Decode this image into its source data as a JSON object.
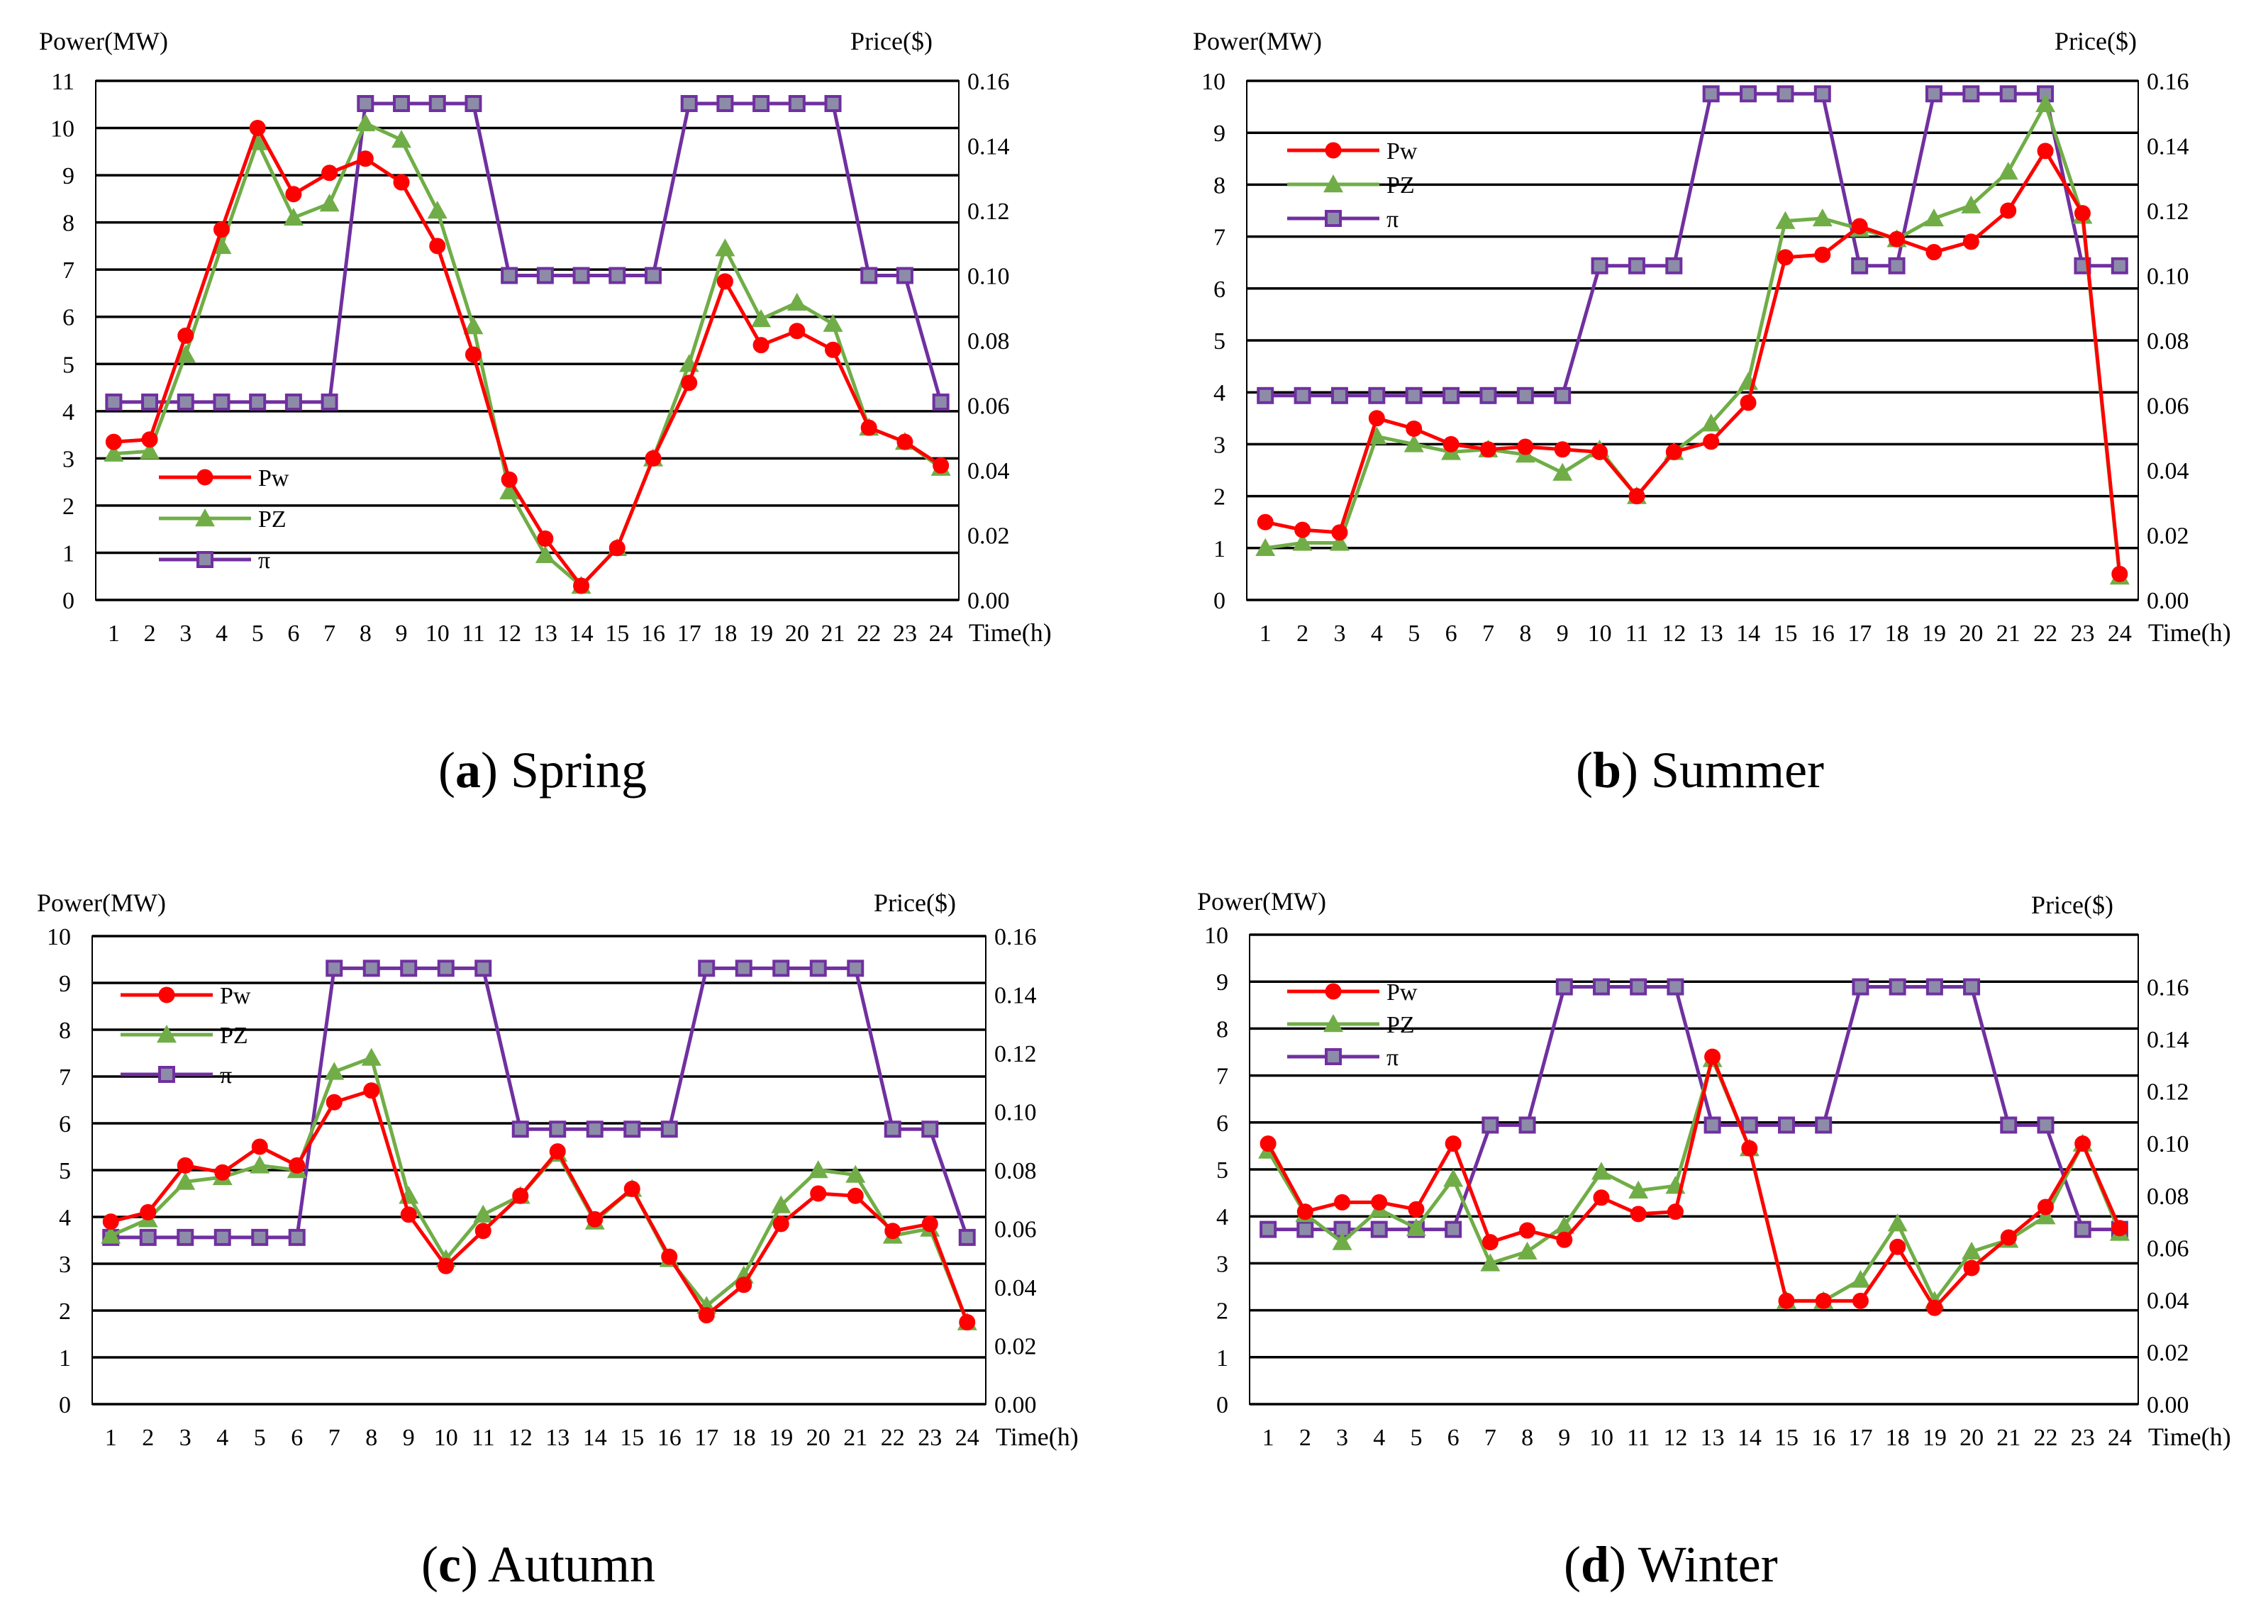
{
  "colors": {
    "pw": "#ff0000",
    "pz": "#70ad47",
    "pi": "#7030a0",
    "pi_marker": "#8c8ca8",
    "grid": "#000000"
  },
  "chart_data": [
    {
      "id": "spring",
      "type": "line",
      "caption_letter": "a",
      "caption_label": "Spring",
      "ylabel_left": "Power(MW)",
      "ylabel_right": "Price($)",
      "xlabel": "Time(h)",
      "ylim_left": [
        0,
        11
      ],
      "ylim_right": [
        0,
        0.16
      ],
      "left_ticks": [
        "0",
        "1",
        "2",
        "3",
        "4",
        "5",
        "6",
        "7",
        "8",
        "9",
        "10",
        "11"
      ],
      "right_ticks": [
        "0.00",
        "0.02",
        "0.04",
        "0.06",
        "0.08",
        "0.10",
        "0.12",
        "0.14",
        "0.16"
      ],
      "x": [
        "1",
        "2",
        "3",
        "4",
        "5",
        "6",
        "7",
        "8",
        "9",
        "10",
        "11",
        "12",
        "13",
        "14",
        "15",
        "16",
        "17",
        "18",
        "19",
        "20",
        "21",
        "22",
        "23",
        "24"
      ],
      "legend_position": "bottom-left",
      "series": [
        {
          "name": "Pw",
          "axis": "left",
          "marker": "circle",
          "values": [
            3.35,
            3.4,
            5.6,
            7.85,
            10.0,
            8.6,
            9.05,
            9.35,
            8.85,
            7.5,
            5.2,
            2.55,
            1.3,
            0.3,
            1.1,
            3.0,
            4.6,
            6.75,
            5.4,
            5.7,
            5.3,
            3.65,
            3.35,
            2.85
          ]
        },
        {
          "name": "PZ",
          "axis": "left",
          "marker": "triangle",
          "values": [
            3.1,
            3.15,
            5.2,
            7.5,
            9.7,
            8.1,
            8.4,
            10.1,
            9.75,
            8.25,
            5.8,
            2.3,
            0.95,
            0.3,
            1.1,
            3.0,
            5.0,
            7.45,
            5.95,
            6.3,
            5.85,
            3.65,
            3.35,
            2.8
          ]
        },
        {
          "name": "π",
          "axis": "right",
          "marker": "square",
          "values": [
            0.061,
            0.061,
            0.061,
            0.061,
            0.061,
            0.061,
            0.061,
            0.153,
            0.153,
            0.153,
            0.153,
            0.1,
            0.1,
            0.1,
            0.1,
            0.1,
            0.153,
            0.153,
            0.153,
            0.153,
            0.153,
            0.1,
            0.1,
            0.061
          ]
        }
      ]
    },
    {
      "id": "summer",
      "type": "line",
      "caption_letter": "b",
      "caption_label": "Summer",
      "ylabel_left": "Power(MW)",
      "ylabel_right": "Price($)",
      "xlabel": "Time(h)",
      "ylim_left": [
        0,
        10
      ],
      "ylim_right": [
        0,
        0.16
      ],
      "left_ticks": [
        "0",
        "1",
        "2",
        "3",
        "4",
        "5",
        "6",
        "7",
        "8",
        "9",
        "10"
      ],
      "right_ticks": [
        "0.00",
        "0.02",
        "0.04",
        "0.06",
        "0.08",
        "0.10",
        "0.12",
        "0.14",
        "0.16"
      ],
      "x": [
        "1",
        "2",
        "3",
        "4",
        "5",
        "6",
        "7",
        "8",
        "9",
        "10",
        "11",
        "12",
        "13",
        "14",
        "15",
        "16",
        "17",
        "18",
        "19",
        "20",
        "21",
        "22",
        "23",
        "24"
      ],
      "legend_position": "top-left",
      "series": [
        {
          "name": "Pw",
          "axis": "left",
          "marker": "circle",
          "values": [
            1.5,
            1.35,
            1.3,
            3.5,
            3.3,
            3.0,
            2.9,
            2.95,
            2.9,
            2.85,
            2.0,
            2.85,
            3.05,
            3.8,
            6.6,
            6.65,
            7.2,
            6.95,
            6.7,
            6.9,
            7.5,
            8.65,
            7.45,
            0.5
          ]
        },
        {
          "name": "PZ",
          "axis": "left",
          "marker": "triangle",
          "values": [
            1.0,
            1.1,
            1.1,
            3.15,
            3.0,
            2.85,
            2.9,
            2.8,
            2.45,
            2.9,
            2.0,
            2.85,
            3.4,
            4.2,
            7.3,
            7.35,
            7.15,
            6.95,
            7.35,
            7.6,
            8.25,
            9.55,
            7.4,
            0.45
          ]
        },
        {
          "name": "π",
          "axis": "right",
          "marker": "square",
          "values": [
            0.063,
            0.063,
            0.063,
            0.063,
            0.063,
            0.063,
            0.063,
            0.063,
            0.063,
            0.103,
            0.103,
            0.103,
            0.156,
            0.156,
            0.156,
            0.156,
            0.103,
            0.103,
            0.156,
            0.156,
            0.156,
            0.156,
            0.103,
            0.103
          ]
        }
      ]
    },
    {
      "id": "autumn",
      "type": "line",
      "caption_letter": "c",
      "caption_label": "Autumn",
      "ylabel_left": "Power(MW)",
      "ylabel_right": "Price($)",
      "xlabel": "Time(h)",
      "ylim_left": [
        0,
        10
      ],
      "ylim_right": [
        0,
        0.16
      ],
      "left_ticks": [
        "0",
        "1",
        "2",
        "3",
        "4",
        "5",
        "6",
        "7",
        "8",
        "9",
        "10"
      ],
      "right_ticks": [
        "0.00",
        "0.02",
        "0.04",
        "0.06",
        "0.08",
        "0.10",
        "0.12",
        "0.14",
        "0.16"
      ],
      "x": [
        "1",
        "2",
        "3",
        "4",
        "5",
        "6",
        "7",
        "8",
        "9",
        "10",
        "11",
        "12",
        "13",
        "14",
        "15",
        "16",
        "17",
        "18",
        "19",
        "20",
        "21",
        "22",
        "23",
        "24"
      ],
      "legend_position": "top-left",
      "series": [
        {
          "name": "Pw",
          "axis": "left",
          "marker": "circle",
          "values": [
            3.9,
            4.1,
            5.1,
            4.95,
            5.5,
            5.1,
            6.45,
            6.7,
            4.05,
            2.95,
            3.7,
            4.45,
            5.4,
            3.95,
            4.6,
            3.15,
            1.9,
            2.55,
            3.85,
            4.5,
            4.45,
            3.7,
            3.85,
            1.75
          ]
        },
        {
          "name": "PZ",
          "axis": "left",
          "marker": "triangle",
          "values": [
            3.6,
            3.95,
            4.75,
            4.85,
            5.1,
            5.0,
            7.1,
            7.4,
            4.45,
            3.1,
            4.05,
            4.45,
            5.35,
            3.9,
            4.6,
            3.1,
            2.1,
            2.75,
            4.25,
            5.0,
            4.9,
            3.6,
            3.75,
            1.75
          ]
        },
        {
          "name": "π",
          "axis": "right",
          "marker": "square",
          "values": [
            0.057,
            0.057,
            0.057,
            0.057,
            0.057,
            0.057,
            0.149,
            0.149,
            0.149,
            0.149,
            0.149,
            0.094,
            0.094,
            0.094,
            0.094,
            0.094,
            0.149,
            0.149,
            0.149,
            0.149,
            0.149,
            0.094,
            0.094,
            0.057
          ]
        }
      ]
    },
    {
      "id": "winter",
      "type": "line",
      "caption_letter": "d",
      "caption_label": "Winter",
      "ylabel_left": "Power(MW)",
      "ylabel_right": "Price($)",
      "xlabel": "Time(h)",
      "ylim_left": [
        0,
        10
      ],
      "ylim_right": [
        0,
        0.18
      ],
      "left_ticks": [
        "0",
        "1",
        "2",
        "3",
        "4",
        "5",
        "6",
        "7",
        "8",
        "9",
        "10"
      ],
      "right_ticks": [
        "0.00",
        "0.02",
        "0.04",
        "0.06",
        "0.08",
        "0.10",
        "0.12",
        "0.14",
        "0.16"
      ],
      "x": [
        "1",
        "2",
        "3",
        "4",
        "5",
        "6",
        "7",
        "8",
        "9",
        "10",
        "11",
        "12",
        "13",
        "14",
        "15",
        "16",
        "17",
        "18",
        "19",
        "20",
        "21",
        "22",
        "23",
        "24"
      ],
      "legend_position": "top-left",
      "series": [
        {
          "name": "Pw",
          "axis": "left",
          "marker": "circle",
          "values": [
            5.55,
            4.1,
            4.3,
            4.3,
            4.15,
            5.55,
            3.45,
            3.7,
            3.5,
            4.4,
            4.05,
            4.1,
            7.4,
            5.45,
            2.2,
            2.2,
            2.2,
            3.35,
            2.05,
            2.9,
            3.55,
            4.2,
            5.55,
            3.75
          ]
        },
        {
          "name": "PZ",
          "axis": "left",
          "marker": "triangle",
          "values": [
            5.4,
            4.05,
            3.45,
            4.15,
            3.75,
            4.8,
            3.0,
            3.25,
            3.8,
            4.95,
            4.55,
            4.65,
            7.35,
            5.45,
            2.2,
            2.2,
            2.65,
            3.85,
            2.2,
            3.25,
            3.5,
            4.0,
            5.55,
            3.65
          ]
        },
        {
          "name": "π",
          "axis": "right",
          "marker": "square",
          "values": [
            0.067,
            0.067,
            0.067,
            0.067,
            0.067,
            0.067,
            0.107,
            0.107,
            0.16,
            0.16,
            0.16,
            0.16,
            0.107,
            0.107,
            0.107,
            0.107,
            0.16,
            0.16,
            0.16,
            0.16,
            0.107,
            0.107,
            0.067,
            0.067
          ]
        }
      ]
    }
  ]
}
